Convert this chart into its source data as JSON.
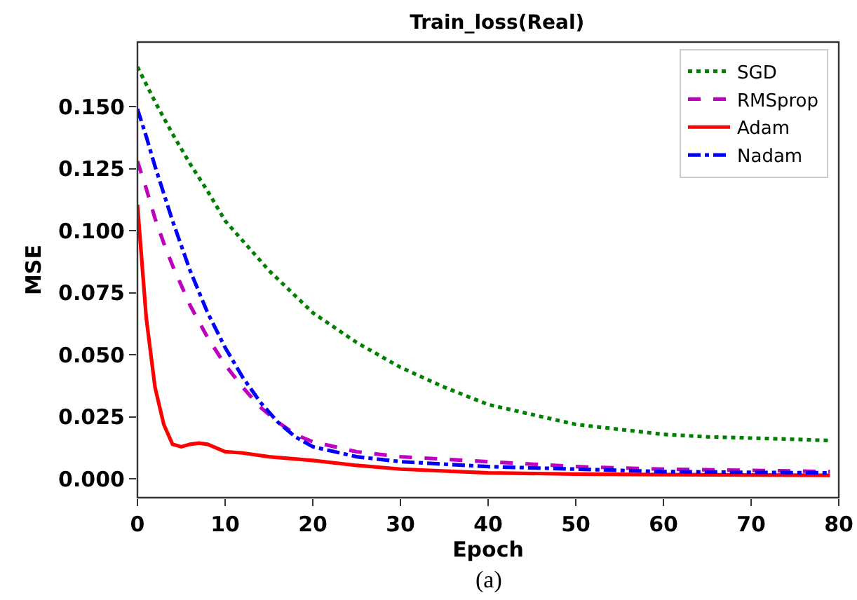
{
  "chart_data": {
    "type": "line",
    "title": "Train_loss(Real)",
    "xlabel": "Epoch",
    "ylabel": "MSE",
    "annotations": [
      "(a)"
    ],
    "xlim": [
      0,
      80
    ],
    "xticks": [
      0,
      10,
      20,
      30,
      40,
      50,
      60,
      70,
      80
    ],
    "ylim": [
      -0.0075,
      0.176
    ],
    "yticks": [
      {
        "value": 0,
        "label": "0.000"
      },
      {
        "value": 0.025,
        "label": "0.025"
      },
      {
        "value": 0.05,
        "label": "0.050"
      },
      {
        "value": 0.075,
        "label": "0.075"
      },
      {
        "value": 0.1,
        "label": "0.100"
      },
      {
        "value": 0.125,
        "label": "0.125"
      },
      {
        "value": 0.15,
        "label": "0.150"
      }
    ],
    "grid": false,
    "legend": "top right",
    "marker": "none",
    "series": [
      {
        "name": "SGD",
        "color": "#008000",
        "line_style": "dotted",
        "x": [
          0,
          2,
          4,
          6,
          8,
          10,
          12,
          15,
          20,
          25,
          30,
          35,
          40,
          45,
          50,
          55,
          60,
          65,
          70,
          75,
          79
        ],
        "values": [
          0.166,
          0.152,
          0.139,
          0.127,
          0.116,
          0.104,
          0.096,
          0.084,
          0.067,
          0.055,
          0.045,
          0.037,
          0.03,
          0.026,
          0.022,
          0.02,
          0.018,
          0.017,
          0.0165,
          0.016,
          0.0155
        ]
      },
      {
        "name": "RMSprop",
        "color": "#bf00bf",
        "line_style": "dashed",
        "x": [
          0,
          1,
          2,
          3,
          4,
          5,
          6,
          8,
          10,
          12,
          14,
          16,
          18,
          20,
          25,
          30,
          40,
          50,
          60,
          70,
          79
        ],
        "values": [
          0.128,
          0.117,
          0.105,
          0.095,
          0.086,
          0.078,
          0.07,
          0.057,
          0.046,
          0.037,
          0.029,
          0.023,
          0.018,
          0.015,
          0.011,
          0.009,
          0.007,
          0.005,
          0.004,
          0.0035,
          0.003
        ]
      },
      {
        "name": "Adam",
        "color": "#ff0000",
        "line_style": "solid",
        "x": [
          0,
          1,
          2,
          3,
          4,
          5,
          6,
          7,
          8,
          9,
          10,
          12,
          15,
          20,
          25,
          30,
          40,
          50,
          60,
          79
        ],
        "values": [
          0.1105,
          0.065,
          0.037,
          0.022,
          0.014,
          0.013,
          0.014,
          0.0145,
          0.014,
          0.0125,
          0.011,
          0.0105,
          0.009,
          0.0075,
          0.0055,
          0.004,
          0.0025,
          0.002,
          0.0018,
          0.0015
        ]
      },
      {
        "name": "Nadam",
        "color": "#0000ff",
        "line_style": "dashdot",
        "x": [
          0,
          1,
          2,
          3,
          4,
          5,
          6,
          8,
          10,
          12,
          14,
          16,
          18,
          20,
          25,
          30,
          40,
          50,
          60,
          70,
          79
        ],
        "values": [
          0.149,
          0.138,
          0.126,
          0.115,
          0.104,
          0.094,
          0.084,
          0.067,
          0.053,
          0.041,
          0.031,
          0.023,
          0.017,
          0.013,
          0.009,
          0.007,
          0.005,
          0.004,
          0.003,
          0.0027,
          0.0025
        ]
      }
    ]
  }
}
